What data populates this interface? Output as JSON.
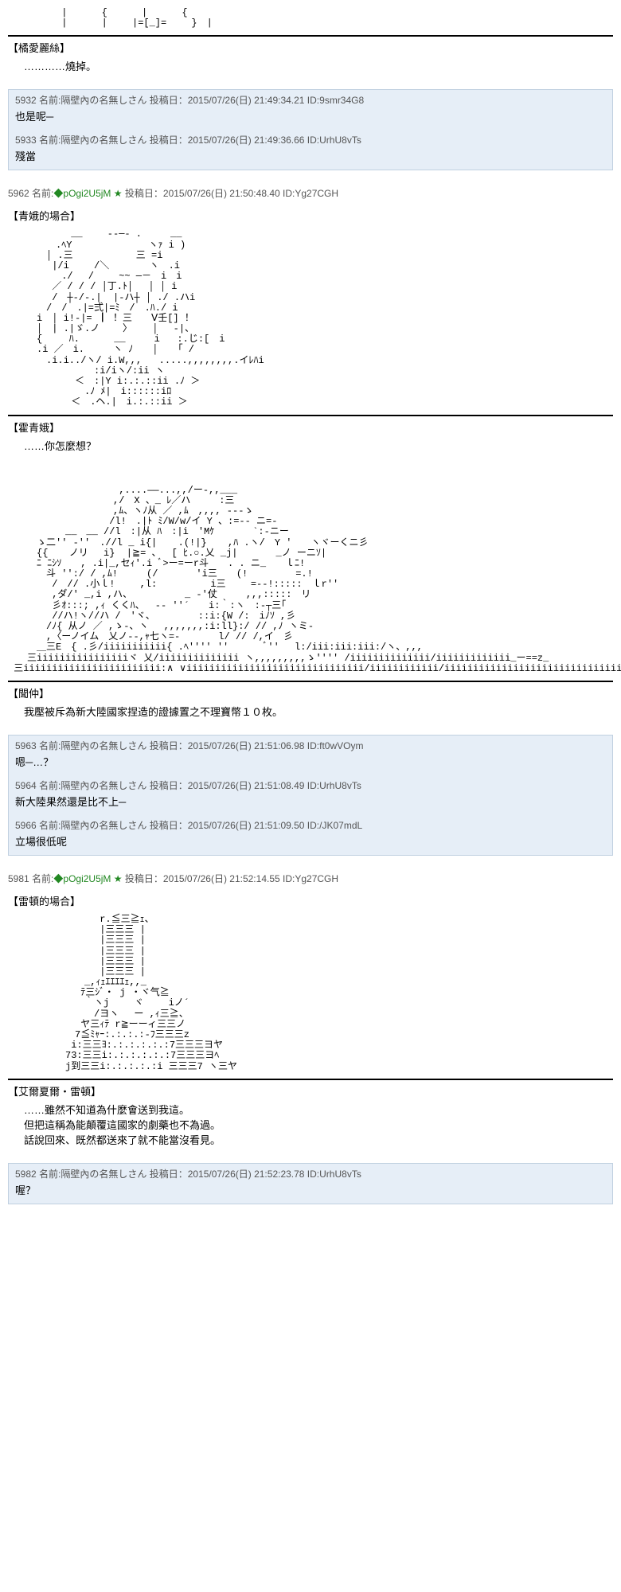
{
  "ascii_top": "　　　 　　|　　　 {　　 　|　　 　{\n　　　 　　|　　 　|　 　|=[_]=　　 }　|",
  "s_alice_name": "【橘愛麗絲】",
  "s_alice_line": "…………燒掉。",
  "replies1": [
    {
      "no": "5932",
      "name": "隔壁內の名無しさん",
      "date": "2015/07/26(日) 21:49:34.21",
      "id": "9smr34G8",
      "body": "也是呢─"
    },
    {
      "no": "5933",
      "name": "隔壁內の名無しさん",
      "date": "2015/07/26(日) 21:49:36.66",
      "id": "UrhU8vTs",
      "body": "殘當"
    }
  ],
  "post2": {
    "no": "5962",
    "trip": "◆pOgi2U5jM",
    "date": "2015/07/26(日) 21:50:48.40",
    "id": "Yg27CGH"
  },
  "s_seiga_title": "【青娥的場合】",
  "ascii_seiga": "　　　　　　 __　　 -‐─- .　　　__\n　　　　　.ﾍY　　　　　　　　ヽｧ i )\n　　　　│ .三　　　　　　 三 =i\n　　　　 |/i　　 /＼　　 　 ヽ　.i\n　　　　　 ./　 /　　 ~~ ─－　i　i\n　　　　 ／ / / / │丁.ﾄ│　 │ │ i\n　　　　 /　┼-/-.|  |-ハ┼ │ ./ .ハi\n　　　　/　/　.|=弍|=ﾐ　/　.ﾊ./ i\n　　　i　│ i!-|= ┃ ！三　　Ⅴ壬[] ！\n　　　│　| .|ゞ.ノ    〉　　 │　 -|、\n　　　{  　 ﾊ.　　　 __     i   :.じ:[　i\n　　　.i ／　i.　　　ヽ ﾉ　　│　 「 /\n　　　　.i.i../ヽ/ i.W,,,   .....,,,,,,,,.イﾚﾊi\n　　　　　　　　　:i/iヽ/:ii ヽ\n　　　　　　　＜　:|Y i:.:.::ii .ﾉ ＞\n　　　　　　　　.ﾉ ﾒ|　i::::::iﾛ\n　　　　　　 ＜　.ヘ.|　i.:.::ii ＞",
  "s_seiga_name": "【霍青娥】",
  "s_seiga_line": "……你怎麼想？",
  "ascii_bunchu": "　　　　　　　　　　　 ,....――...,,/ー-,,___\n　　　　　　　　　　　,/　X 、_ ﾚ／ハ　　　:三\n　　　　　　　　　　　,ﾑ、ヽﾉ从 ／ ,ﾑ　,,,, ---ゝ\n　　　　　　　　　　 /l!　.|ﾄ ﾐ/W/w/イ Y 、:=-- ニ=-\n　　　　　　__　__ //l　:|从 ﾊ　:|i　'Mｹ　　　　`:-ニー\n　　　ゝ二'' -''　.//l _ i{|　  .(!|}　  ,ﾊ .ヽ/　Y '　　ヽヾーくニ彡\n　　　{{  　ノリ　 i}  |≧= 、　 [ ﾋ.○.乂 _j|　　　　_ノ ーニｿ|\n　　　ﾆ ﾆｼｿ　　, .i|_,セｨ'.i ﾞ>ー=ーr斗　　. . ニ_　　ｌﾆ!\n　　　　斗 '':/ / ,ﾑ!　　　(/　　　　'i三　　(!　　　　　=.!\n　　　　 /　// .小ｌ!　　 ,l: 　　　　　i三　　 =--!:::::　ｌr''\n　　　　 ,ダ/' _,i ,ハ、　　　　　　_ -'仗　　　,,,:::::　リ\n　　　　 彡ｵ:::; ,ｨ くくﾊ、　 -‐ ''´　　i:｀:ヽ　:‐┬三｢\n　　　　 //ハ!ヽ//ハ /　'ヾ、　　　　　::i:{W /:　iﾉｿ ,彡\n　　　　/ﾉ{ 从ノ ／ ,ゝ-、ヽ　 ,,,,,,,:i:ll}:/ // ,ﾉ ヽミ-\n　　　　,〈ーノイム　乂ノ--,ｬ七ヽ=-　　　　l/ // /,イ　彡\n　　　＿三E　{ .彡/iiiiiiiiiii{ .ﾍ'''' ''　　 　ﾞ''　 l:/iii:iii:iii:/ヽ、,,,\n　　三iiiiiiiiiiiiiiiiヾ 乂/iiiiiiiiiiiiii ヽ,,,,,,,,,ゝ'''' /iiiiiiiiiiiiii/iiiiiiiiiiiii_ー==z_\n 三iiiiiiiiiiiiiiiiiiiiiiii:∧ ∨iiiiiiiiiiiiiiiiiiiiiiiiiiiiiii/iiiiiiiiiiii/iiiiiiiiiiiiiiiiiiiiiiiiiiiiiiiii",
  "s_bunchu_name": "【聞仲】",
  "s_bunchu_line": "我壓被斥為新大陸國家捏造的證據置之不理寶幣１０枚。",
  "replies2": [
    {
      "no": "5963",
      "name": "隔壁內の名無しさん",
      "date": "2015/07/26(日) 21:51:06.98",
      "id": "ft0wVOym",
      "body": "嗯─…？"
    },
    {
      "no": "5964",
      "name": "隔壁內の名無しさん",
      "date": "2015/07/26(日) 21:51:08.49",
      "id": "UrhU8vTs",
      "body": "新大陸果然還是比不上─"
    },
    {
      "no": "5966",
      "name": "隔壁內の名無しさん",
      "date": "2015/07/26(日) 21:51:09.50",
      "id": "/JK07mdL",
      "body": "立場很低呢"
    }
  ],
  "post3": {
    "no": "5981",
    "trip": "◆pOgi2U5jM",
    "date": "2015/07/26(日) 21:52:14.55",
    "id": "Yg27CGH"
  },
  "s_raiton_title": "【雷頓的場合】",
  "ascii_raiton": "　　　　　　　　　 r.≦三≧ｪ、\n　　　　　　　　　 |三三三 |\n　　　　　　　　　 |三三三 |\n　　　　　　　　　 |三三三 |\n　　　　　　　　　 |三三三 |\n　　　　　　　　　 |三三三 |\n　　　　　　　　_,ｨｪｴｴｴｴｪ,,_\n　　　　　　　 ﾃ三ｼﾞ・ j ・ヾ气≧\n　　　　　　　　｀ヽj 　　ヾ　 　iノ´\n　　　　　　　　　/ヨヽ　 ー ,ｨ三≧、\n　　　　　　 　ヤ三ｨﾃ r≧ーーィ三三ノ\n　　　　　　　7≦ﾐｬｰ:.:.:.:-ﾌ三三三z\n　　　　　　 i:三三ﾖ:.:.:.:.:.:7三三三ヨヤ\n　　　　　　73:三三i:.:.:.:.:.:7三三三ヨﾍ\n　　　　　　j到三三i:.:.:.:.:i 三三三7 ヽ三ヤ",
  "s_raiton_name": "【艾爾夏爾・雷頓】",
  "s_raiton_line1": "……雖然不知道為什麼會送到我這。",
  "s_raiton_line2": "但把這稱為能顛覆這國家的劇藥也不為過。",
  "s_raiton_line3": "話說回來、既然都送來了就不能當沒看見。",
  "replies3": [
    {
      "no": "5982",
      "name": "隔壁內の名無しさん",
      "date": "2015/07/26(日) 21:52:23.78",
      "id": "UrhU8vTs",
      "body": "喔？"
    }
  ],
  "label_name": "名前:",
  "label_post": "投稿日：",
  "label_id": "ID:"
}
